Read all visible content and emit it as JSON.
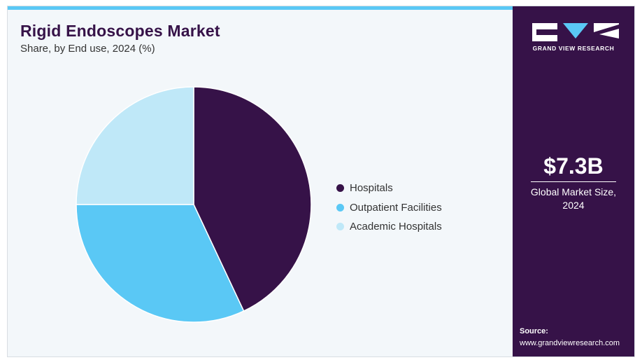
{
  "header": {
    "title": "Rigid Endoscopes Market",
    "subtitle": "Share, by End use, 2024 (%)"
  },
  "chart_data": {
    "type": "pie",
    "categories": [
      "Hospitals",
      "Outpatient Facilities",
      "Academic Hospitals"
    ],
    "values": [
      43,
      32,
      25
    ],
    "colors": [
      "#361248",
      "#5ac8f5",
      "#bfe8f8"
    ],
    "start": "12 o'clock",
    "direction": "clockwise",
    "legend_position": "right"
  },
  "sidebar": {
    "brand_name": "GRAND VIEW RESEARCH",
    "market_value": "$7.3B",
    "market_label_line1": "Global Market Size,",
    "market_label_line2": "2024",
    "source_label": "Source:",
    "source_url": "www.grandviewresearch.com"
  },
  "colors": {
    "brand_dark": "#361248",
    "accent": "#5ac8f5",
    "background": "#f3f7fa"
  }
}
